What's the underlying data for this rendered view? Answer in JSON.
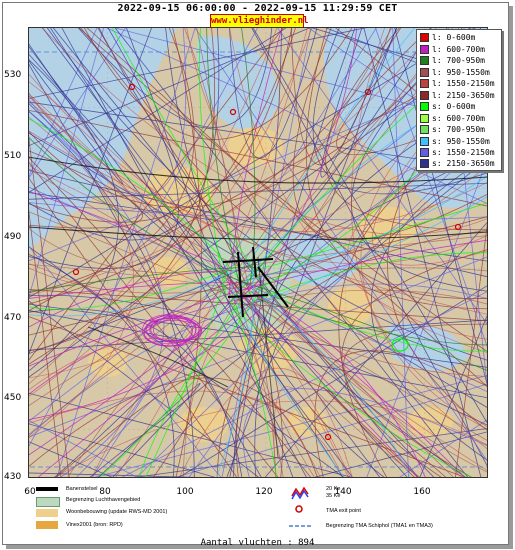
{
  "title": "2022-09-15 06:00:00 - 2022-09-15 11:29:59 CET",
  "brand": "www.vlieghinder.nl",
  "map": {
    "y_ticks": [
      "530",
      "510",
      "490",
      "470",
      "450",
      "430"
    ],
    "x_ticks": [
      "60",
      "80",
      "100",
      "120",
      "140",
      "160"
    ],
    "colors": {
      "sea": "#b4d2e6",
      "land": "#d7c8a8",
      "urban": "#eed08c",
      "airport": "#bcd9c0"
    }
  },
  "legend": {
    "items": [
      {
        "label": "l: 0-600m",
        "color": "#e00000"
      },
      {
        "label": "l: 600-700m",
        "color": "#c020c0"
      },
      {
        "label": "l: 700-950m",
        "color": "#208020"
      },
      {
        "label": "l: 950-1550m",
        "color": "#a05050"
      },
      {
        "label": "l: 1550-2150m",
        "color": "#c04040"
      },
      {
        "label": "l: 2150-3650m",
        "color": "#8a2a2a"
      },
      {
        "label": "s: 0-600m",
        "color": "#00ff00"
      },
      {
        "label": "s: 600-700m",
        "color": "#a0ff40"
      },
      {
        "label": "s: 700-950m",
        "color": "#70e060"
      },
      {
        "label": "s: 950-1550m",
        "color": "#40c0ff"
      },
      {
        "label": "s: 1550-2150m",
        "color": "#6060e0"
      },
      {
        "label": "s: 2150-3650m",
        "color": "#303090"
      }
    ]
  },
  "bottom_legend": {
    "runway": "Banenstelsel",
    "airport_boundary": "Begrenzing Luchthavengebied",
    "housing": "Woonbebouwing (update RWS-MD 2001)",
    "vinex": "Vinex2001 (bron: RPD)",
    "ke_20": "20 Ke",
    "ke_35": "35 Ke",
    "tma_exit": "TMA exit point",
    "tma_boundary": "Begrenzing TMA Schiphol  (TMA1 en TMA3)"
  },
  "footer": "Aantal vluchten : 894"
}
